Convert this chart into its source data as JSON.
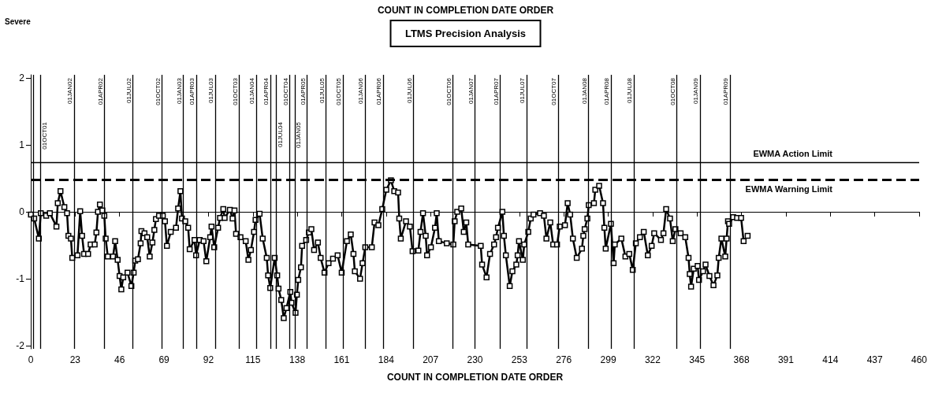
{
  "chart_data": {
    "type": "line",
    "title": "COUNT IN COMPLETION DATE ORDER",
    "subtitle": "LTMS Precision Analysis",
    "xlabel": "COUNT IN COMPLETION DATE ORDER",
    "annotations": [
      "Severe"
    ],
    "xlim": [
      0,
      460
    ],
    "xticks": [
      0,
      23,
      46,
      69,
      92,
      115,
      138,
      161,
      184,
      207,
      230,
      253,
      276,
      299,
      322,
      345,
      368,
      391,
      414,
      437,
      460
    ],
    "ylim": [
      -2.05,
      2.05
    ],
    "yticks": [
      -2,
      -1,
      0,
      1,
      2
    ],
    "grid": false,
    "legend": false,
    "marker": "square",
    "line_style": "solid",
    "series": [
      {
        "color": "#000000",
        "x": [
          0.1,
          1.8,
          4.2,
          5.2,
          8,
          9.9,
          13.3,
          14,
          15.4,
          17.4,
          18.8,
          19.5,
          20.8,
          21.5,
          24.2,
          25.6,
          26.6,
          27.6,
          29.7,
          31,
          33.1,
          34,
          34.8,
          35.8,
          37.1,
          38.1,
          38.8,
          39.9,
          42.6,
          43.7,
          45,
          46,
          46.9,
          47.9,
          50.1,
          52.1,
          53.3,
          54.1,
          55.5,
          56.9,
          57.3,
          58.9,
          60.3,
          61.6,
          63,
          64,
          64.8,
          66.4,
          68.4,
          69.5,
          70.5,
          72.5,
          75.2,
          76.3,
          77.5,
          78.3,
          80,
          81.5,
          82.3,
          84.8,
          85.6,
          87.5,
          89.5,
          90.9,
          92.9,
          93.6,
          95,
          97,
          98,
          99.7,
          100.4,
          103.1,
          104.5,
          105.5,
          106.3,
          108.6,
          111.3,
          112.7,
          114,
          115.6,
          116.4,
          118.5,
          120.1,
          122.2,
          122.9,
          124,
          126.3,
          127.6,
          128.3,
          129.7,
          131,
          132.4,
          134.4,
          135,
          137.1,
          137.8,
          138.5,
          139.9,
          140.5,
          142.6,
          144,
          145.3,
          146.7,
          148.7,
          150.1,
          152.1,
          154.2,
          156.5,
          158.9,
          161,
          163.7,
          165.7,
          167.1,
          167.8,
          170.5,
          171.8,
          173.2,
          176.6,
          178,
          180,
          182,
          184.1,
          186.5,
          188.2,
          190.2,
          190.8,
          191.6,
          194.3,
          196.3,
          197.7,
          200.7,
          201.8,
          203.1,
          204.5,
          205.2,
          207.2,
          209.3,
          210.2,
          211.3,
          215.4,
          218.8,
          219.5,
          220.8,
          222.9,
          224.2,
          225.5,
          226.5,
          233,
          233.7,
          236,
          237.8,
          239.9,
          240.9,
          241.9,
          244.2,
          245,
          246,
          248,
          249.4,
          251.4,
          252.1,
          252.8,
          254.8,
          255.5,
          257.6,
          258.9,
          260.3,
          263.7,
          265.7,
          267,
          269,
          270.5,
          272.5,
          273.9,
          276.6,
          278,
          279.3,
          280.7,
          282.7,
          285.4,
          286.1,
          286.8,
          288.2,
          288.9,
          291.6,
          292.3,
          294.3,
          296.3,
          297,
          297.7,
          300.4,
          301.8,
          302.4,
          305.8,
          307.9,
          309.9,
          311.7,
          313.3,
          315.4,
          317.4,
          319.5,
          321.5,
          322.8,
          326.3,
          327.6,
          329,
          331,
          332.4,
          333.8,
          336.5,
          338.9,
          340.6,
          341.2,
          341.9,
          343.3,
          345.3,
          346,
          348.1,
          349.4,
          351.4,
          353.5,
          355.5,
          356.2,
          357.6,
          359.6,
          360.3,
          361,
          361.6,
          363.7,
          365.7,
          367.8,
          369.1,
          371.2
        ],
        "values": [
          -0.04,
          -0.1,
          -0.4,
          -0.02,
          -0.06,
          -0.02,
          -0.22,
          0.13,
          0.31,
          0.07,
          -0.02,
          -0.36,
          -0.4,
          -0.69,
          -0.65,
          0.01,
          -0.36,
          -0.63,
          -0.63,
          -0.49,
          -0.49,
          -0.31,
          0,
          0.11,
          0.02,
          -0.06,
          -0.4,
          -0.67,
          -0.67,
          -0.44,
          -0.72,
          -0.96,
          -1.16,
          -0.98,
          -0.91,
          -1.11,
          -0.91,
          -0.73,
          -0.71,
          -0.47,
          -0.29,
          -0.32,
          -0.38,
          -0.67,
          -0.46,
          -0.27,
          -0.11,
          -0.06,
          -0.06,
          -0.14,
          -0.51,
          -0.3,
          -0.24,
          0.05,
          0.31,
          -0.1,
          -0.14,
          -0.24,
          -0.56,
          -0.42,
          -0.65,
          -0.42,
          -0.44,
          -0.74,
          -0.38,
          -0.22,
          -0.53,
          -0.24,
          -0.09,
          0.04,
          -0.09,
          0.03,
          -0.1,
          0.02,
          -0.33,
          -0.38,
          -0.44,
          -0.72,
          -0.57,
          -0.3,
          -0.12,
          -0.03,
          -0.4,
          -0.69,
          -0.95,
          -1.14,
          -0.69,
          -0.95,
          -1.15,
          -1.32,
          -1.59,
          -1.44,
          -1.2,
          -1.36,
          -1.51,
          -1.24,
          -1.02,
          -0.83,
          -0.51,
          -0.42,
          -0.31,
          -0.26,
          -0.57,
          -0.46,
          -0.69,
          -0.91,
          -0.77,
          -0.7,
          -0.65,
          -0.91,
          -0.44,
          -0.34,
          -0.63,
          -0.89,
          -1.0,
          -0.77,
          -0.53,
          -0.53,
          -0.16,
          -0.2,
          0.04,
          0.33,
          0.47,
          0.31,
          0.29,
          -0.1,
          -0.4,
          -0.14,
          -0.22,
          -0.59,
          -0.58,
          -0.3,
          -0.02,
          -0.36,
          -0.65,
          -0.53,
          -0.24,
          -0.02,
          -0.44,
          -0.47,
          -0.49,
          -0.14,
          0,
          0.05,
          -0.3,
          -0.16,
          -0.49,
          -0.51,
          -0.79,
          -0.98,
          -0.63,
          -0.49,
          -0.38,
          -0.24,
          0,
          -0.36,
          -0.65,
          -1.11,
          -0.89,
          -0.79,
          -0.65,
          -0.44,
          -0.72,
          -0.49,
          -0.3,
          -0.1,
          -0.04,
          -0.02,
          -0.06,
          -0.4,
          -0.16,
          -0.49,
          -0.49,
          -0.22,
          -0.2,
          0.13,
          -0.04,
          -0.4,
          -0.69,
          -0.55,
          -0.36,
          -0.26,
          -0.1,
          0.1,
          0.13,
          0.33,
          0.39,
          0.13,
          -0.24,
          -0.55,
          -0.18,
          -0.77,
          -0.49,
          -0.4,
          -0.67,
          -0.63,
          -0.87,
          -0.47,
          -0.38,
          -0.3,
          -0.65,
          -0.51,
          -0.32,
          -0.42,
          -0.32,
          0.04,
          -0.1,
          -0.44,
          -0.26,
          -0.32,
          -0.38,
          -0.69,
          -0.93,
          -1.12,
          -0.85,
          -0.81,
          -1.02,
          -0.89,
          -0.79,
          -0.96,
          -1.1,
          -0.95,
          -0.69,
          -0.4,
          -0.67,
          -0.4,
          -0.14,
          -0.18,
          -0.08,
          -0.09,
          -0.09,
          -0.44,
          -0.36
        ]
      }
    ],
    "ref_lines": [
      {
        "axis": "y",
        "value": 0.74,
        "label": "EWMA Action Limit",
        "line_style": "solid",
        "color": "#000000"
      },
      {
        "axis": "y",
        "value": 0.48,
        "label": "EWMA Warning Limit",
        "line_style": "dashed",
        "color": "#000000"
      },
      {
        "axis": "x",
        "value": 1.5,
        "label": null
      },
      {
        "axis": "x",
        "value": 4.9,
        "label": "01OCT01"
      },
      {
        "axis": "x",
        "value": 22.4,
        "label": "01JAN02"
      },
      {
        "axis": "x",
        "value": 38,
        "label": "01APR02"
      },
      {
        "axis": "x",
        "value": 52.7,
        "label": "01JUL02"
      },
      {
        "axis": "x",
        "value": 67.8,
        "label": "01OCT02"
      },
      {
        "axis": "x",
        "value": 78.8,
        "label": "01JAN03"
      },
      {
        "axis": "x",
        "value": 85.7,
        "label": "01APR03"
      },
      {
        "axis": "x",
        "value": 95.5,
        "label": "01JUL03"
      },
      {
        "axis": "x",
        "value": 107.8,
        "label": "01OCT03"
      },
      {
        "axis": "x",
        "value": 116.7,
        "label": "01JAN04"
      },
      {
        "axis": "x",
        "value": 124,
        "label": "01APR04"
      },
      {
        "axis": "x",
        "value": 127,
        "label": "01JUL04"
      },
      {
        "axis": "x",
        "value": 134,
        "label": "01OCT04"
      },
      {
        "axis": "x",
        "value": 136.7,
        "label": "01JAN05"
      },
      {
        "axis": "x",
        "value": 142.9,
        "label": "01APR05"
      },
      {
        "axis": "x",
        "value": 152.7,
        "label": "01JUL05"
      },
      {
        "axis": "x",
        "value": 161.6,
        "label": "01OCT05"
      },
      {
        "axis": "x",
        "value": 173,
        "label": "01JAN06"
      },
      {
        "axis": "x",
        "value": 182.4,
        "label": "01APR06"
      },
      {
        "axis": "x",
        "value": 198,
        "label": "01JUL06"
      },
      {
        "axis": "x",
        "value": 218.4,
        "label": "01OCT06"
      },
      {
        "axis": "x",
        "value": 230,
        "label": "01JAN07"
      },
      {
        "axis": "x",
        "value": 242.9,
        "label": "01APR07"
      },
      {
        "axis": "x",
        "value": 256.7,
        "label": "01JUL07"
      },
      {
        "axis": "x",
        "value": 273,
        "label": "01OCT07"
      },
      {
        "axis": "x",
        "value": 288.6,
        "label": "01JAN08"
      },
      {
        "axis": "x",
        "value": 300.4,
        "label": "01APR08"
      },
      {
        "axis": "x",
        "value": 312.2,
        "label": "01JUL08"
      },
      {
        "axis": "x",
        "value": 334.3,
        "label": "01OCT08"
      },
      {
        "axis": "x",
        "value": 346.5,
        "label": "01JAN09"
      },
      {
        "axis": "x",
        "value": 362,
        "label": "01APR09"
      }
    ]
  }
}
